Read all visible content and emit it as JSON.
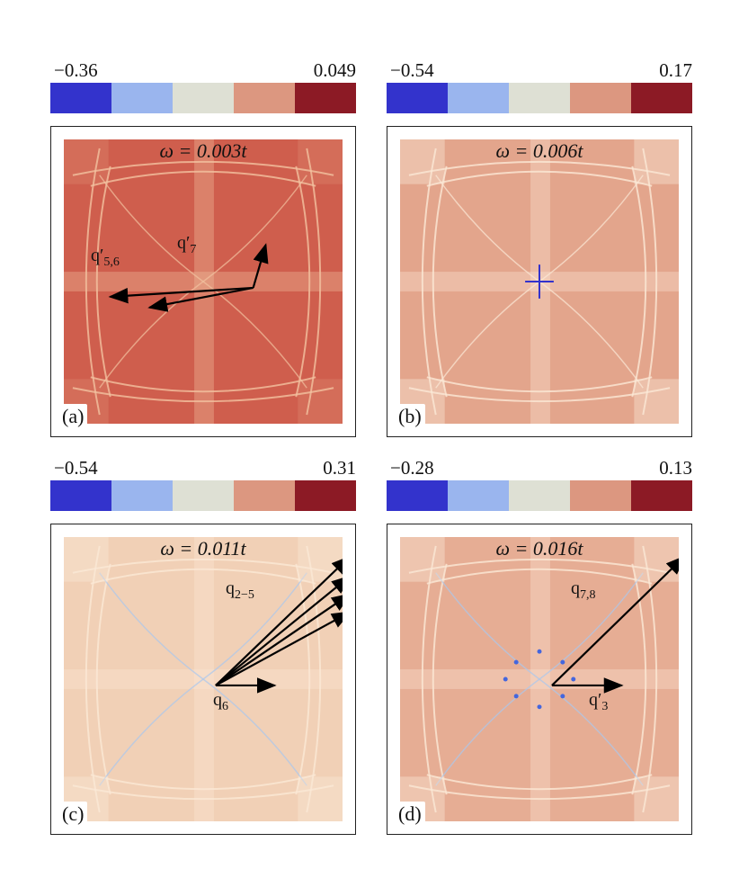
{
  "panels": [
    {
      "label": "(a)",
      "omega": "ω = 0.003t",
      "colorbar": {
        "min": "−0.36",
        "max": "0.049",
        "colors": [
          "#3333cc",
          "#9ab5ee",
          "#dee0d4",
          "#dc9780",
          "#8c1a25"
        ]
      },
      "background": "#cf5e4d",
      "vectors": [
        {
          "label": "q′",
          "sub": "7"
        },
        {
          "label": "q′",
          "sub": "5,6"
        }
      ]
    },
    {
      "label": "(b)",
      "omega": "ω = 0.006t",
      "colorbar": {
        "min": "−0.54",
        "max": "0.17",
        "colors": [
          "#3333cc",
          "#9ab5ee",
          "#dee0d4",
          "#dc9780",
          "#8c1a25"
        ]
      },
      "background": "#e3a58c",
      "vectors": []
    },
    {
      "label": "(c)",
      "omega": "ω = 0.011t",
      "colorbar": {
        "min": "−0.54",
        "max": "0.31",
        "colors": [
          "#3333cc",
          "#9ab5ee",
          "#dee0d4",
          "#dc9780",
          "#8c1a25"
        ]
      },
      "background": "#f1d0b6",
      "vectors": [
        {
          "label": "q",
          "sub": "2−5"
        },
        {
          "label": "q",
          "sub": "6"
        }
      ]
    },
    {
      "label": "(d)",
      "omega": "ω = 0.016t",
      "colorbar": {
        "min": "−0.28",
        "max": "0.13",
        "colors": [
          "#3333cc",
          "#9ab5ee",
          "#dee0d4",
          "#dc9780",
          "#8c1a25"
        ]
      },
      "background": "#e6ad94",
      "vectors": [
        {
          "label": "q",
          "sub": "7,8"
        },
        {
          "label": "q′",
          "sub": "3"
        }
      ]
    }
  ]
}
